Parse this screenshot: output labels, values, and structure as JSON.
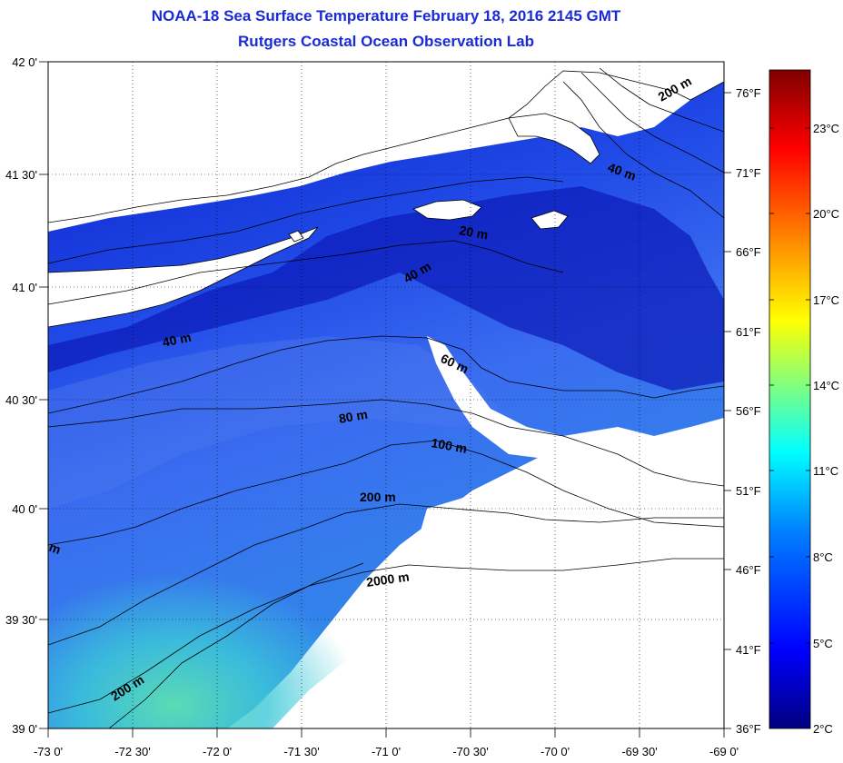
{
  "titles": {
    "line1": "NOAA-18 Sea Surface Temperature February 18, 2016 2145 GMT",
    "line2": "Rutgers Coastal Ocean Observation Lab"
  },
  "map": {
    "lon_labels": [
      "-73 0'",
      "-72 30'",
      "-72 0'",
      "-71 30'",
      "-71 0'",
      "-70 30'",
      "-70 0'",
      "-69 30'",
      "-69 0'"
    ],
    "lat_labels": [
      "42 0'",
      "41 30'",
      "41 0'",
      "40 30'",
      "40 0'",
      "39 30'",
      "39 0'"
    ],
    "fahrenheit_labels": [
      "76°F",
      "71°F",
      "66°F",
      "61°F",
      "56°F",
      "51°F",
      "46°F",
      "41°F",
      "36°F"
    ],
    "bathymetry_labels": [
      "200 m",
      "40 m",
      "20 m",
      "40 m",
      "40 m",
      "60 m",
      "80 m",
      "100 m",
      "200 m",
      "2000 m",
      "200 m",
      "m"
    ],
    "colors": {
      "land": "#ffffff",
      "cold_water": "#1030d8",
      "mid_water": "#3a6cf0",
      "warm_water": "#3cc8d8",
      "coastline": "#000000"
    }
  },
  "colorbar": {
    "celsius_labels": [
      "23°C",
      "20°C",
      "17°C",
      "14°C",
      "11°C",
      "8°C",
      "5°C",
      "2°C"
    ],
    "range_c": [
      2,
      24
    ],
    "colors": [
      "#00007f",
      "#0000ff",
      "#0080ff",
      "#00ffff",
      "#80ff80",
      "#ffff00",
      "#ff8000",
      "#ff0000",
      "#800000"
    ]
  }
}
